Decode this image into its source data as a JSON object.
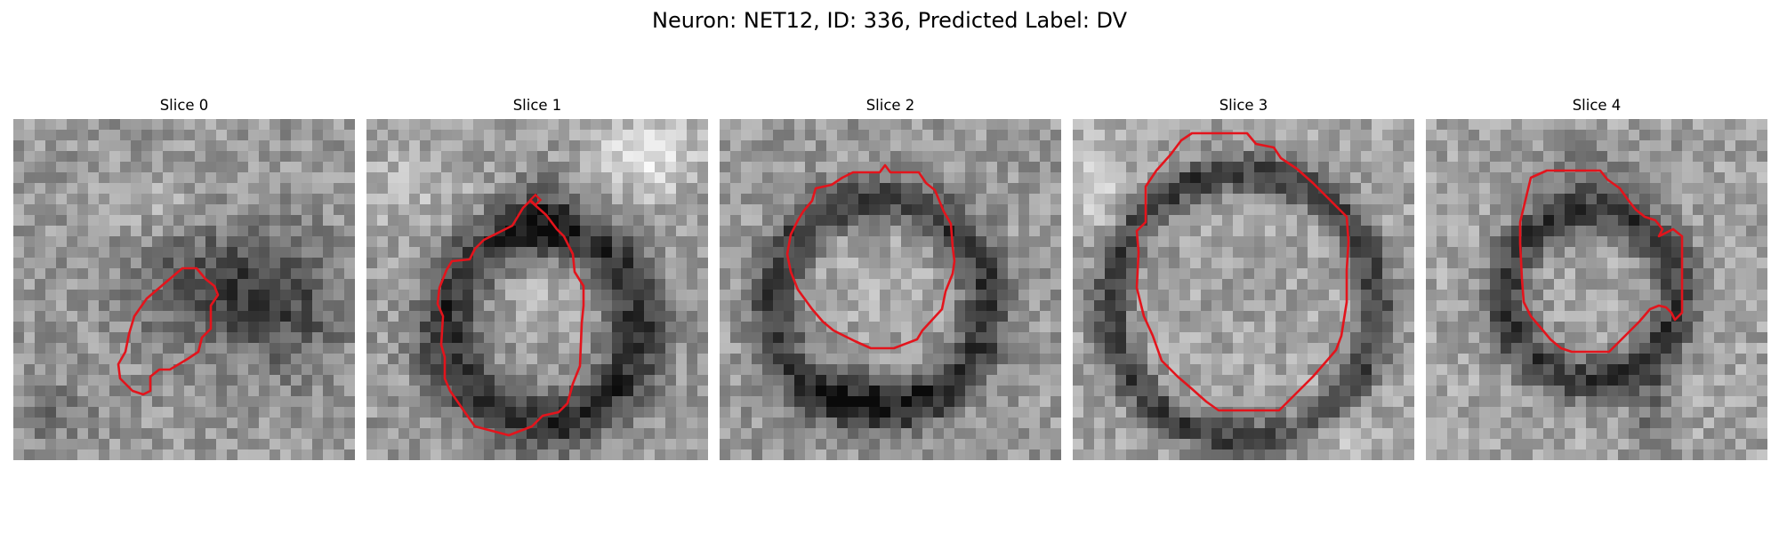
{
  "figure": {
    "title": "Neuron: NET12, ID: 336, Predicted Label: DV"
  },
  "colors": {
    "contour": "#e3141c",
    "background": "#ffffff",
    "image_colormap": "grayscale"
  },
  "panels": [
    {
      "title": "Slice 0"
    },
    {
      "title": "Slice 1"
    },
    {
      "title": "Slice 2"
    },
    {
      "title": "Slice 3"
    },
    {
      "title": "Slice 4"
    }
  ]
}
